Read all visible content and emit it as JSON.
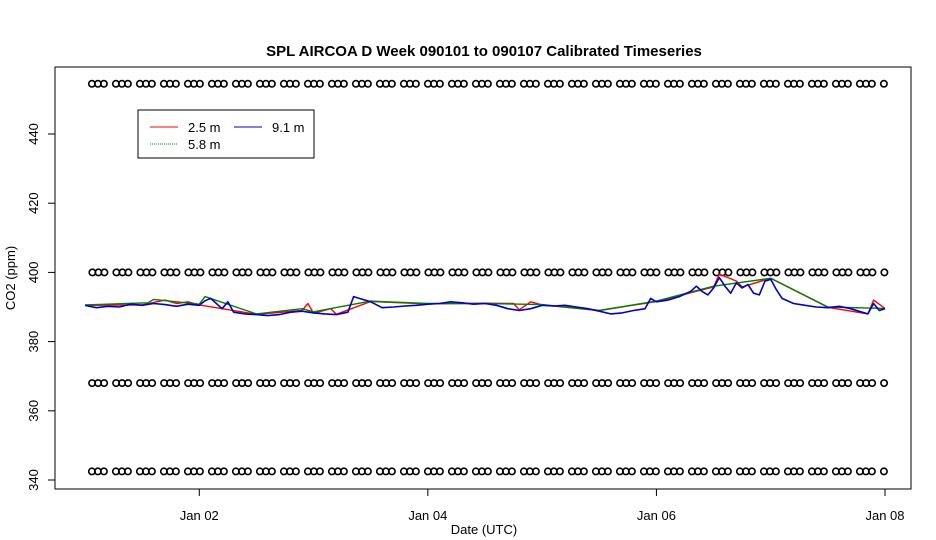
{
  "chart_data": {
    "type": "line",
    "title": "SPL AIRCOA D  Week 090101 to 090107  Calibrated Timeseries",
    "xlabel": "Date (UTC)",
    "ylabel": "CO2 (ppm)",
    "x_unit": "days since Jan 01 00:00 UTC",
    "xlim": [
      1.0,
      8.0
    ],
    "ylim": [
      338,
      457
    ],
    "x_ticks": [
      {
        "value": 2,
        "label": "Jan 02"
      },
      {
        "value": 4,
        "label": "Jan 04"
      },
      {
        "value": 6,
        "label": "Jan 06"
      },
      {
        "value": 8,
        "label": "Jan 08"
      }
    ],
    "y_ticks": [
      340,
      360,
      380,
      400,
      420,
      440
    ],
    "grid": false,
    "legend": {
      "position": "top-left",
      "entries": [
        {
          "name": "2.5 m",
          "color": "#ff0000"
        },
        {
          "name": "5.8 m",
          "color": "#008000"
        },
        {
          "name": "9.1 m",
          "color": "#0000cc"
        }
      ]
    },
    "calibration_points": {
      "marker": "open-circle",
      "levels_ppm": [
        454.5,
        400,
        368,
        342.5
      ]
    },
    "series": [
      {
        "name": "9.1 m",
        "color": "#0000cc",
        "x": [
          1.0,
          1.1,
          1.2,
          1.3,
          1.4,
          1.5,
          1.6,
          1.7,
          1.8,
          1.9,
          2.0,
          2.05,
          2.1,
          2.2,
          2.25,
          2.3,
          2.4,
          2.5,
          2.6,
          2.7,
          2.8,
          2.9,
          3.0,
          3.1,
          3.2,
          3.3,
          3.35,
          3.4,
          3.5,
          3.6,
          3.7,
          3.8,
          3.9,
          4.0,
          4.1,
          4.2,
          4.3,
          4.4,
          4.5,
          4.6,
          4.7,
          4.8,
          4.9,
          5.0,
          5.1,
          5.2,
          5.3,
          5.4,
          5.5,
          5.6,
          5.7,
          5.8,
          5.9,
          5.95,
          6.0,
          6.1,
          6.2,
          6.3,
          6.35,
          6.4,
          6.45,
          6.5,
          6.55,
          6.6,
          6.65,
          6.7,
          6.75,
          6.8,
          6.85,
          6.9,
          6.95,
          7.0,
          7.05,
          7.1,
          7.2,
          7.3,
          7.4,
          7.5,
          7.6,
          7.7,
          7.8,
          7.85,
          7.9,
          7.95,
          8.0
        ],
        "y": [
          390.5,
          389.8,
          390.2,
          390.0,
          390.8,
          390.5,
          391.0,
          390.7,
          390.2,
          390.8,
          390.5,
          391.8,
          392.5,
          389.5,
          391.5,
          388.5,
          388.0,
          387.8,
          387.5,
          387.8,
          388.5,
          388.8,
          388.3,
          388.0,
          387.8,
          388.5,
          393.0,
          392.5,
          391.5,
          389.8,
          390.0,
          390.3,
          390.5,
          390.8,
          391.0,
          391.5,
          391.2,
          390.8,
          391.0,
          390.5,
          389.5,
          389.0,
          389.5,
          390.5,
          390.3,
          390.5,
          390.0,
          389.5,
          388.8,
          388.0,
          388.3,
          389.0,
          389.5,
          392.5,
          391.5,
          392.0,
          393.0,
          394.5,
          396.0,
          394.5,
          393.5,
          395.5,
          398.5,
          396.0,
          394.0,
          397.0,
          395.5,
          396.5,
          394.0,
          393.5,
          397.5,
          398.0,
          395.0,
          392.5,
          391.0,
          390.5,
          390.0,
          389.8,
          390.2,
          389.5,
          388.5,
          388.0,
          391.0,
          389.0,
          389.5
        ]
      },
      {
        "name": "2.5 m",
        "color": "#ff0000",
        "x": [
          1.0,
          1.5,
          1.7,
          1.8,
          1.9,
          2.0,
          2.5,
          2.9,
          2.95,
          3.0,
          3.15,
          3.2,
          3.5,
          4.0,
          4.5,
          4.75,
          4.8,
          4.9,
          5.0,
          5.5,
          6.0,
          6.5,
          6.55,
          6.7,
          6.75,
          7.0,
          7.5,
          7.85,
          7.9,
          8.0
        ],
        "y": [
          390.5,
          390.6,
          392.0,
          391.0,
          391.5,
          390.6,
          387.9,
          389.0,
          391.0,
          388.2,
          389.5,
          387.9,
          391.6,
          390.9,
          391.1,
          391.0,
          389.2,
          391.5,
          390.6,
          389.0,
          391.6,
          395.8,
          399.5,
          397.5,
          395.8,
          398.3,
          389.9,
          388.0,
          392.0,
          389.6
        ]
      },
      {
        "name": "5.8 m",
        "color": "#008000",
        "x": [
          1.0,
          1.55,
          1.6,
          2.0,
          2.05,
          2.5,
          2.9,
          3.0,
          3.5,
          4.0,
          4.5,
          5.0,
          5.5,
          6.0,
          6.5,
          7.0,
          7.5,
          8.0
        ],
        "y": [
          390.6,
          391.2,
          392.2,
          390.8,
          393.0,
          388.0,
          389.5,
          388.6,
          391.7,
          391.0,
          391.0,
          390.7,
          389.0,
          391.7,
          396.0,
          398.3,
          390.0,
          389.6
        ]
      }
    ]
  }
}
